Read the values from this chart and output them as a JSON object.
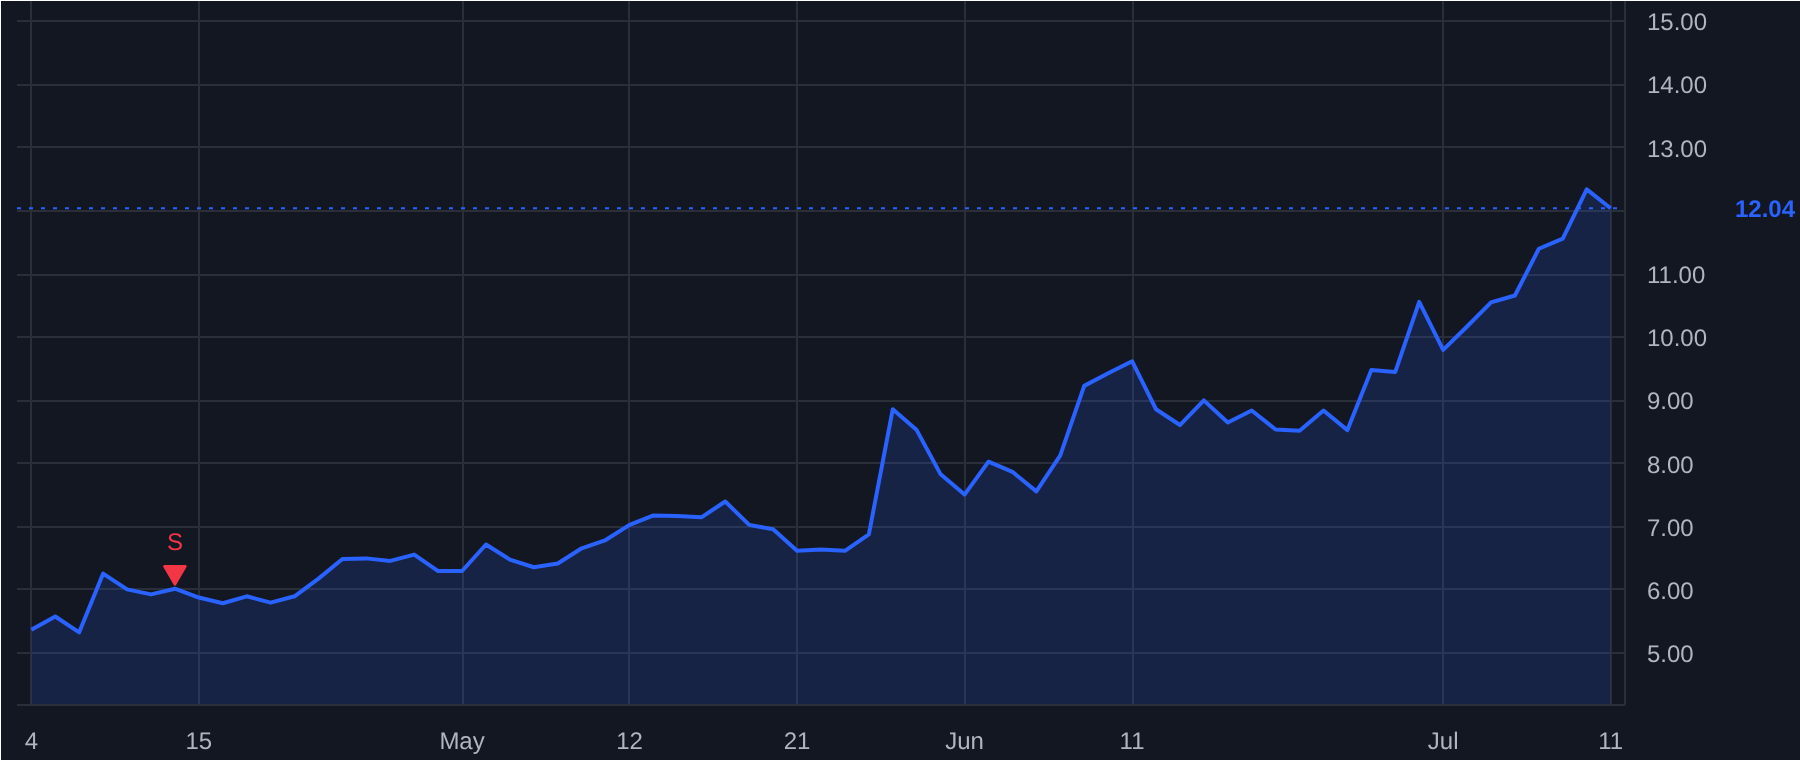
{
  "chart_data": {
    "type": "area",
    "categories": [
      "4",
      null,
      null,
      null,
      null,
      null,
      null,
      "15",
      null,
      null,
      null,
      null,
      null,
      null,
      null,
      null,
      null,
      null,
      "May",
      null,
      null,
      null,
      null,
      null,
      null,
      "12",
      null,
      null,
      null,
      null,
      null,
      null,
      "21",
      null,
      null,
      null,
      null,
      null,
      null,
      "Jun",
      null,
      null,
      null,
      null,
      null,
      null,
      "11",
      null,
      null,
      null,
      null,
      null,
      null,
      null,
      null,
      null,
      null,
      null,
      null,
      "Jul",
      null,
      null,
      null,
      null,
      null,
      null,
      "11"
    ],
    "series": [
      {
        "color": "#2962ff",
        "values": [
          5.37,
          5.58,
          5.33,
          6.26,
          6.01,
          5.93,
          6.02,
          5.88,
          5.79,
          5.9,
          5.8,
          5.9,
          6.18,
          6.49,
          6.5,
          6.46,
          6.56,
          6.3,
          6.3,
          6.72,
          6.48,
          6.36,
          6.42,
          6.66,
          6.79,
          7.03,
          7.18,
          7.17,
          7.15,
          7.4,
          7.03,
          6.96,
          6.62,
          6.64,
          6.62,
          6.88,
          8.86,
          8.53,
          7.83,
          7.51,
          8.03,
          7.87,
          7.56,
          8.13,
          9.23,
          9.43,
          9.62,
          8.86,
          8.61,
          9.0,
          8.65,
          8.84,
          8.54,
          8.52,
          8.84,
          8.53,
          9.48,
          9.45,
          10.56,
          9.8,
          10.17,
          10.55,
          10.66,
          11.4,
          11.56,
          12.34,
          12.04
        ]
      },
      {
        "type": "scatter",
        "marker": "triangle",
        "color": "#f23645",
        "values": [
          null,
          null,
          null,
          null,
          null,
          null,
          6.28,
          null,
          null,
          null,
          null,
          null,
          null,
          null,
          null,
          null,
          null,
          null,
          null,
          null,
          null,
          null,
          null,
          null,
          null,
          null,
          null,
          null,
          null,
          null,
          null,
          null,
          null,
          null,
          null,
          null,
          null,
          null,
          null,
          null,
          null,
          null,
          null,
          null,
          null,
          null,
          null,
          null,
          null,
          null,
          null,
          null,
          null,
          null,
          null,
          null,
          null,
          null,
          null,
          null,
          null,
          null,
          null,
          null,
          null,
          null,
          null
        ]
      }
    ],
    "annotations": [
      "S"
    ],
    "ylim": [
      4.18,
      15.32
    ],
    "yticks": [
      {
        "value": 5,
        "label": "5.00"
      },
      {
        "value": 6,
        "label": "6.00"
      },
      {
        "value": 7,
        "label": "7.00"
      },
      {
        "value": 8,
        "label": "8.00"
      },
      {
        "value": 9,
        "label": "9.00"
      },
      {
        "value": 10,
        "label": "10.00"
      },
      {
        "value": 11,
        "label": "11.00"
      },
      {
        "value": 12,
        "label": null
      },
      {
        "value": 13,
        "label": "13.00"
      },
      {
        "value": 14,
        "label": "14.00"
      },
      {
        "value": 15,
        "label": "15.00"
      }
    ],
    "ref_lines": [
      {
        "axis": "y",
        "value": 12.04,
        "label": "12.04",
        "color": "#2962ff",
        "line_style": "dotted"
      }
    ],
    "grid": true,
    "line_style": "solid"
  }
}
